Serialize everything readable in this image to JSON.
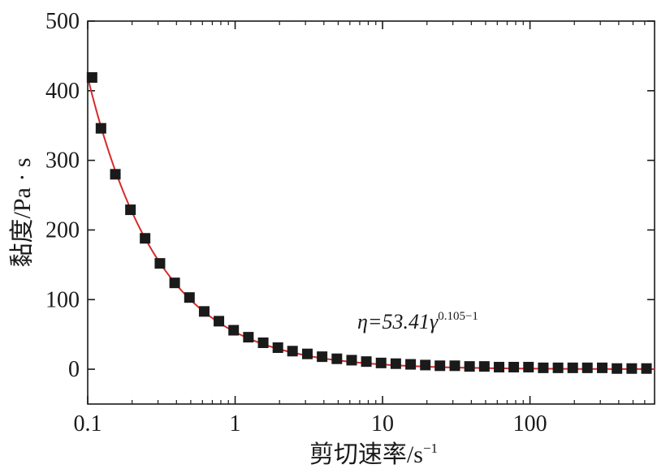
{
  "chart_data": {
    "type": "scatter",
    "xscale": "log",
    "yscale": "linear",
    "xlim": [
      0.1,
      700
    ],
    "ylim": [
      -50,
      500
    ],
    "xticks": [
      0.1,
      1,
      10,
      100
    ],
    "xtick_labels": [
      "0.1",
      "1",
      "10",
      "100"
    ],
    "yticks": [
      0,
      100,
      200,
      300,
      400,
      500
    ],
    "ytick_labels": [
      "0",
      "100",
      "200",
      "300",
      "400",
      "500"
    ],
    "xlabel_main": "剪切速率/s",
    "xlabel_sup": "−1",
    "ylabel": "黏度/Pa · s",
    "grid": false,
    "legend": "none",
    "colors": {
      "marker": "#1a1a1a",
      "fit": "#d62b2b",
      "axis": "#1a1a1a"
    },
    "series": [
      {
        "marker": "square",
        "x": [
          0.107,
          0.123,
          0.154,
          0.195,
          0.245,
          0.309,
          0.389,
          0.49,
          0.617,
          0.776,
          0.977,
          1.23,
          1.55,
          1.95,
          2.45,
          3.09,
          3.89,
          4.9,
          6.17,
          7.76,
          9.77,
          12.3,
          15.5,
          19.5,
          24.5,
          30.9,
          38.9,
          49,
          61.7,
          77.6,
          97.7,
          123,
          155,
          195,
          245,
          309,
          389,
          490,
          617
        ],
        "y": [
          419,
          346,
          280,
          229,
          188,
          152,
          124,
          103,
          83,
          69,
          56,
          46,
          38,
          31,
          26,
          22,
          18,
          15,
          13,
          11,
          9,
          8,
          7,
          6,
          5,
          5,
          4,
          4,
          3,
          3,
          3,
          2,
          2,
          2,
          2,
          2,
          1,
          1,
          1
        ]
      }
    ],
    "fit": {
      "equation_prefix": "η=53.41γ",
      "equation_exponent": "0.105−1",
      "k": 53.41,
      "n": 0.105
    }
  }
}
